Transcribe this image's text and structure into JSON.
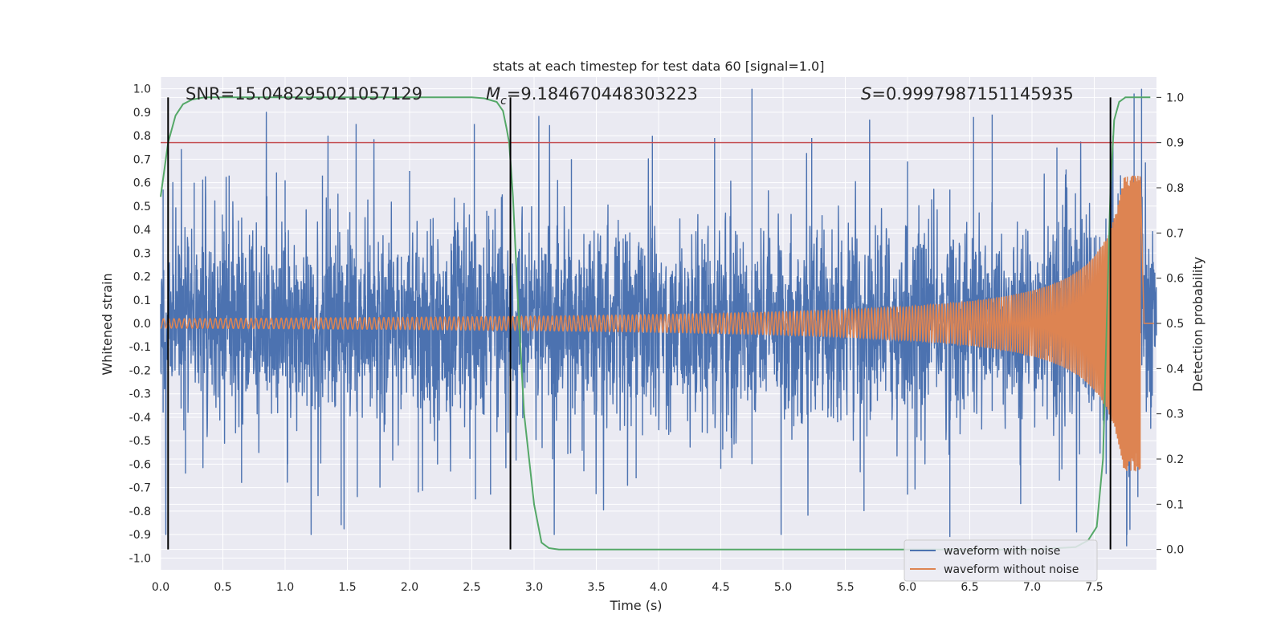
{
  "chart_data": {
    "type": "line",
    "title": "stats at each timestep for test data 60 [signal=1.0]",
    "xlabel": "Time (s)",
    "ylabel": "Whitened strain",
    "y2label": "Detection probability",
    "xlim": [
      0.0,
      8.0
    ],
    "ylim": [
      -1.05,
      1.05
    ],
    "y2lim": [
      -0.045,
      1.045
    ],
    "grid": true,
    "legend_position": "lower-right",
    "x_ticks": [
      "0.0",
      "0.5",
      "1.0",
      "1.5",
      "2.0",
      "2.5",
      "3.0",
      "3.5",
      "4.0",
      "4.5",
      "5.0",
      "5.5",
      "6.0",
      "6.5",
      "7.0",
      "7.5"
    ],
    "y_ticks": [
      "1.0",
      "0.9",
      "0.8",
      "0.7",
      "0.6",
      "0.5",
      "0.4",
      "0.3",
      "0.2",
      "0.1",
      "0.0",
      "-0.1",
      "-0.2",
      "-0.3",
      "-0.4",
      "-0.5",
      "-0.6",
      "-0.7",
      "-0.8",
      "-0.9",
      "-1.0"
    ],
    "y2_ticks": [
      "1.0",
      "0.9",
      "0.8",
      "0.7",
      "0.6",
      "0.5",
      "0.4",
      "0.3",
      "0.2",
      "0.1",
      "0.0"
    ],
    "annotations": {
      "snr": "SNR=15.048295021057129",
      "mc_symbol": "M",
      "mc_sub": "c",
      "mc_value": "=9.184670448303223",
      "s_symbol": "S",
      "s_value": "=0.9997987151145935"
    },
    "threshold": {
      "value": 0.9,
      "axis": "y2",
      "color": "#c44e52"
    },
    "vertical_markers_x": [
      0.06,
      2.81,
      7.63
    ],
    "series": [
      {
        "name": "waveform with noise",
        "color": "#4c72b0",
        "axis": "y",
        "values_note": "",
        "spikes": [
          {
            "x": 0.02,
            "y": 0.57
          },
          {
            "x": 0.02,
            "y": -0.38
          },
          {
            "x": 0.27,
            "y": 0.6
          },
          {
            "x": 0.2,
            "y": -0.64
          },
          {
            "x": 0.55,
            "y": 0.63
          },
          {
            "x": 0.65,
            "y": -0.68
          },
          {
            "x": 1.0,
            "y": 0.61
          },
          {
            "x": 1.02,
            "y": -0.6
          },
          {
            "x": 1.3,
            "y": 0.63
          },
          {
            "x": 1.45,
            "y": -0.86
          },
          {
            "x": 1.57,
            "y": 0.85
          },
          {
            "x": 1.58,
            "y": -0.74
          },
          {
            "x": 2.0,
            "y": 0.65
          },
          {
            "x": 2.07,
            "y": -0.72
          },
          {
            "x": 2.52,
            "y": 0.85
          },
          {
            "x": 2.53,
            "y": -0.75
          },
          {
            "x": 2.62,
            "y": 0.48
          },
          {
            "x": 2.65,
            "y": -0.73
          },
          {
            "x": 3.3,
            "y": 0.7
          },
          {
            "x": 3.4,
            "y": -0.63
          },
          {
            "x": 3.95,
            "y": 0.8
          },
          {
            "x": 3.82,
            "y": -0.66
          },
          {
            "x": 4.45,
            "y": 0.79
          },
          {
            "x": 4.5,
            "y": -0.62
          },
          {
            "x": 4.75,
            "y": 1.0
          },
          {
            "x": 4.75,
            "y": -0.6
          },
          {
            "x": 5.23,
            "y": 0.79
          },
          {
            "x": 5.65,
            "y": -0.8
          },
          {
            "x": 6.0,
            "y": 0.69
          },
          {
            "x": 6.0,
            "y": -0.73
          },
          {
            "x": 6.34,
            "y": 0.57
          },
          {
            "x": 6.34,
            "y": -0.91
          },
          {
            "x": 6.53,
            "y": 0.88
          },
          {
            "x": 6.68,
            "y": 0.89
          },
          {
            "x": 7.2,
            "y": 0.75
          },
          {
            "x": 7.22,
            "y": -0.67
          },
          {
            "x": 7.65,
            "y": 0.8
          },
          {
            "x": 7.76,
            "y": -0.95
          },
          {
            "x": 7.82,
            "y": 0.98
          },
          {
            "x": 7.88,
            "y": 1.0
          },
          {
            "x": 7.85,
            "y": -0.74
          }
        ],
        "noise_std": 0.2,
        "noise_clip": [
          -0.9,
          0.9
        ]
      },
      {
        "name": "waveform without noise",
        "color": "#dd8452",
        "axis": "y",
        "model": "chirp",
        "amplitude_start": 0.02,
        "amplitude_peak": 0.63,
        "merger_time": 7.87,
        "end_time": 7.9,
        "cycles_in_first_0.5s": 12
      },
      {
        "name": "",
        "color": "#55a868",
        "axis": "y2",
        "x": [
          0.0,
          0.06,
          0.12,
          0.18,
          0.25,
          0.35,
          0.5,
          1.0,
          1.5,
          2.0,
          2.5,
          2.6,
          2.7,
          2.75,
          2.78,
          2.8,
          2.83,
          2.87,
          2.92,
          3.0,
          3.06,
          3.12,
          3.2,
          3.5,
          4.0,
          5.0,
          6.0,
          7.0,
          7.35,
          7.45,
          7.52,
          7.57,
          7.6,
          7.63,
          7.66,
          7.7,
          7.75,
          7.8,
          7.95
        ],
        "values": [
          0.78,
          0.9,
          0.96,
          0.985,
          0.995,
          1.0,
          1.0,
          1.0,
          1.0,
          1.0,
          1.0,
          0.998,
          0.99,
          0.97,
          0.93,
          0.9,
          0.78,
          0.55,
          0.3,
          0.1,
          0.015,
          0.003,
          0.0,
          0.0,
          0.0,
          0.0,
          0.0,
          0.0,
          0.005,
          0.02,
          0.05,
          0.2,
          0.5,
          0.8,
          0.95,
          0.99,
          1.0,
          1.0,
          1.0
        ]
      }
    ],
    "legend": [
      {
        "label": "waveform with noise",
        "color": "#4c72b0"
      },
      {
        "label": "waveform without noise",
        "color": "#dd8452"
      }
    ],
    "colors": {
      "plot_background": "#eaeaf2",
      "grid": "#ffffff",
      "marker": "#000000",
      "text": "#262626"
    }
  }
}
